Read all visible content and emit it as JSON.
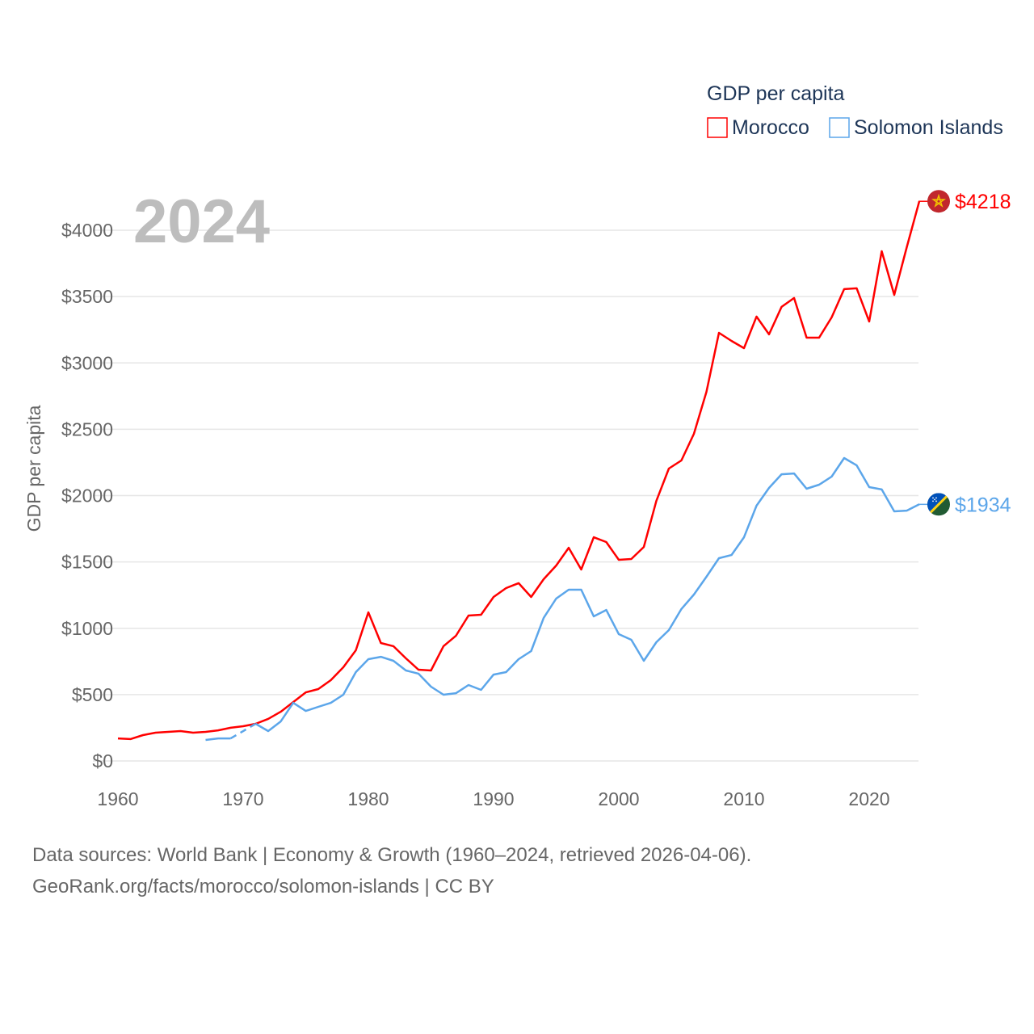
{
  "chart_data": {
    "type": "line",
    "title": "GDP per capita",
    "ylabel": "GDP per capita",
    "xlabel": "",
    "year_label": "2024",
    "xlim": [
      1960,
      2024
    ],
    "ylim": [
      0,
      4000
    ],
    "x_ticks": [
      "1960",
      "1970",
      "1980",
      "1990",
      "2000",
      "2010",
      "2020"
    ],
    "y_ticks": [
      "$0",
      "$500",
      "$1000",
      "$1500",
      "$2000",
      "$2500",
      "$3000",
      "$3500",
      "$4000"
    ],
    "grid": true,
    "legend_position": "top-right",
    "x": [
      1960,
      1961,
      1962,
      1963,
      1964,
      1965,
      1966,
      1967,
      1968,
      1969,
      1970,
      1971,
      1972,
      1973,
      1974,
      1975,
      1976,
      1977,
      1978,
      1979,
      1980,
      1981,
      1982,
      1983,
      1984,
      1985,
      1986,
      1987,
      1988,
      1989,
      1990,
      1991,
      1992,
      1993,
      1994,
      1995,
      1996,
      1997,
      1998,
      1999,
      2000,
      2001,
      2002,
      2003,
      2004,
      2005,
      2006,
      2007,
      2008,
      2009,
      2010,
      2011,
      2012,
      2013,
      2014,
      2015,
      2016,
      2017,
      2018,
      2019,
      2020,
      2021,
      2022,
      2023,
      2024
    ],
    "series": [
      {
        "name": "Morocco",
        "color": "#ff0000",
        "end_label": "$4218",
        "flag": "morocco-flag",
        "values": [
          170,
          165,
          195,
          213,
          219,
          225,
          213,
          219,
          231,
          250,
          262,
          280,
          317,
          371,
          444,
          517,
          542,
          609,
          706,
          834,
          1120,
          889,
          865,
          773,
          688,
          682,
          865,
          944,
          1096,
          1102,
          1236,
          1303,
          1340,
          1236,
          1370,
          1473,
          1607,
          1443,
          1686,
          1650,
          1516,
          1522,
          1613,
          1960,
          2204,
          2265,
          2466,
          2782,
          3227,
          3166,
          3111,
          3349,
          3215,
          3422,
          3489,
          3190,
          3190,
          3343,
          3556,
          3562,
          3312,
          3842,
          3513,
          3872,
          4218
        ]
      },
      {
        "name": "Solomon Islands",
        "color": "#5ca6ea",
        "end_label": "$1934",
        "flag": "solomon-islands-flag",
        "values": [
          null,
          null,
          null,
          null,
          null,
          null,
          null,
          158,
          170,
          170,
          null,
          280,
          225,
          298,
          438,
          377,
          408,
          438,
          499,
          670,
          767,
          785,
          755,
          682,
          658,
          560,
          499,
          511,
          572,
          536,
          651,
          670,
          767,
          828,
          1078,
          1224,
          1291,
          1291,
          1090,
          1138,
          956,
          913,
          755,
          895,
          986,
          1145,
          1254,
          1388,
          1528,
          1552,
          1686,
          1924,
          2058,
          2161,
          2167,
          2052,
          2082,
          2143,
          2283,
          2228,
          2064,
          2046,
          1881,
          1887,
          1934
        ]
      }
    ]
  },
  "footer": {
    "line1": "Data sources: World Bank | Economy & Growth (1960–2024, retrieved 2026-04-06).",
    "line2": "GeoRank.org/facts/morocco/solomon-islands | CC BY"
  }
}
